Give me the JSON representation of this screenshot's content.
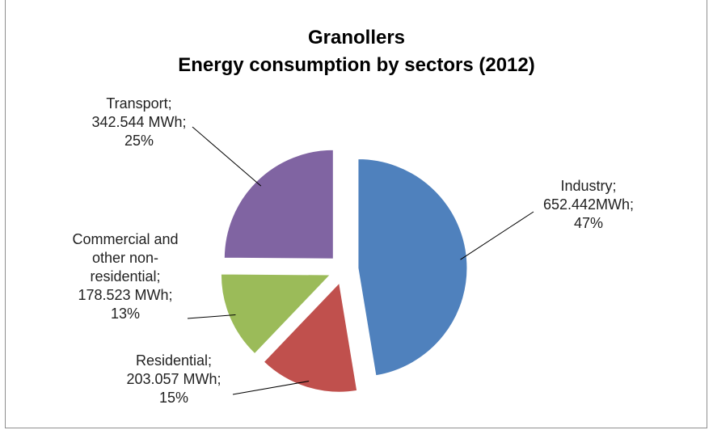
{
  "chart_data": {
    "type": "pie",
    "title": "Granollers",
    "subtitle": "Energy consumption by sectors (2012)",
    "slices": [
      {
        "name": "Industry",
        "value_label": "652.442MWh",
        "value": 652.442,
        "percent": "47%",
        "color": "#4f81bd"
      },
      {
        "name": "Residential",
        "value_label": "203.057 MWh",
        "value": 203.057,
        "percent": "15%",
        "color": "#c0504d"
      },
      {
        "name": "Commercial and other non-residential",
        "value_label": "178.523 MWh",
        "value": 178.523,
        "percent": "13%",
        "color": "#9bbb59"
      },
      {
        "name": "Transport",
        "value_label": "342.544 MWh",
        "value": 342.544,
        "percent": "25%",
        "color": "#8064a2"
      }
    ],
    "labels": {
      "industry": [
        "Industry;",
        "652.442MWh;",
        "47%"
      ],
      "residential": [
        "Residential;",
        "203.057 MWh;",
        "15%"
      ],
      "commercial": [
        "Commercial and",
        "other non-",
        "residential;",
        "178.523 MWh;",
        "13%"
      ],
      "transport": [
        "Transport;",
        "342.544 MWh;",
        "25%"
      ]
    },
    "exploded": true,
    "legend": "none"
  }
}
